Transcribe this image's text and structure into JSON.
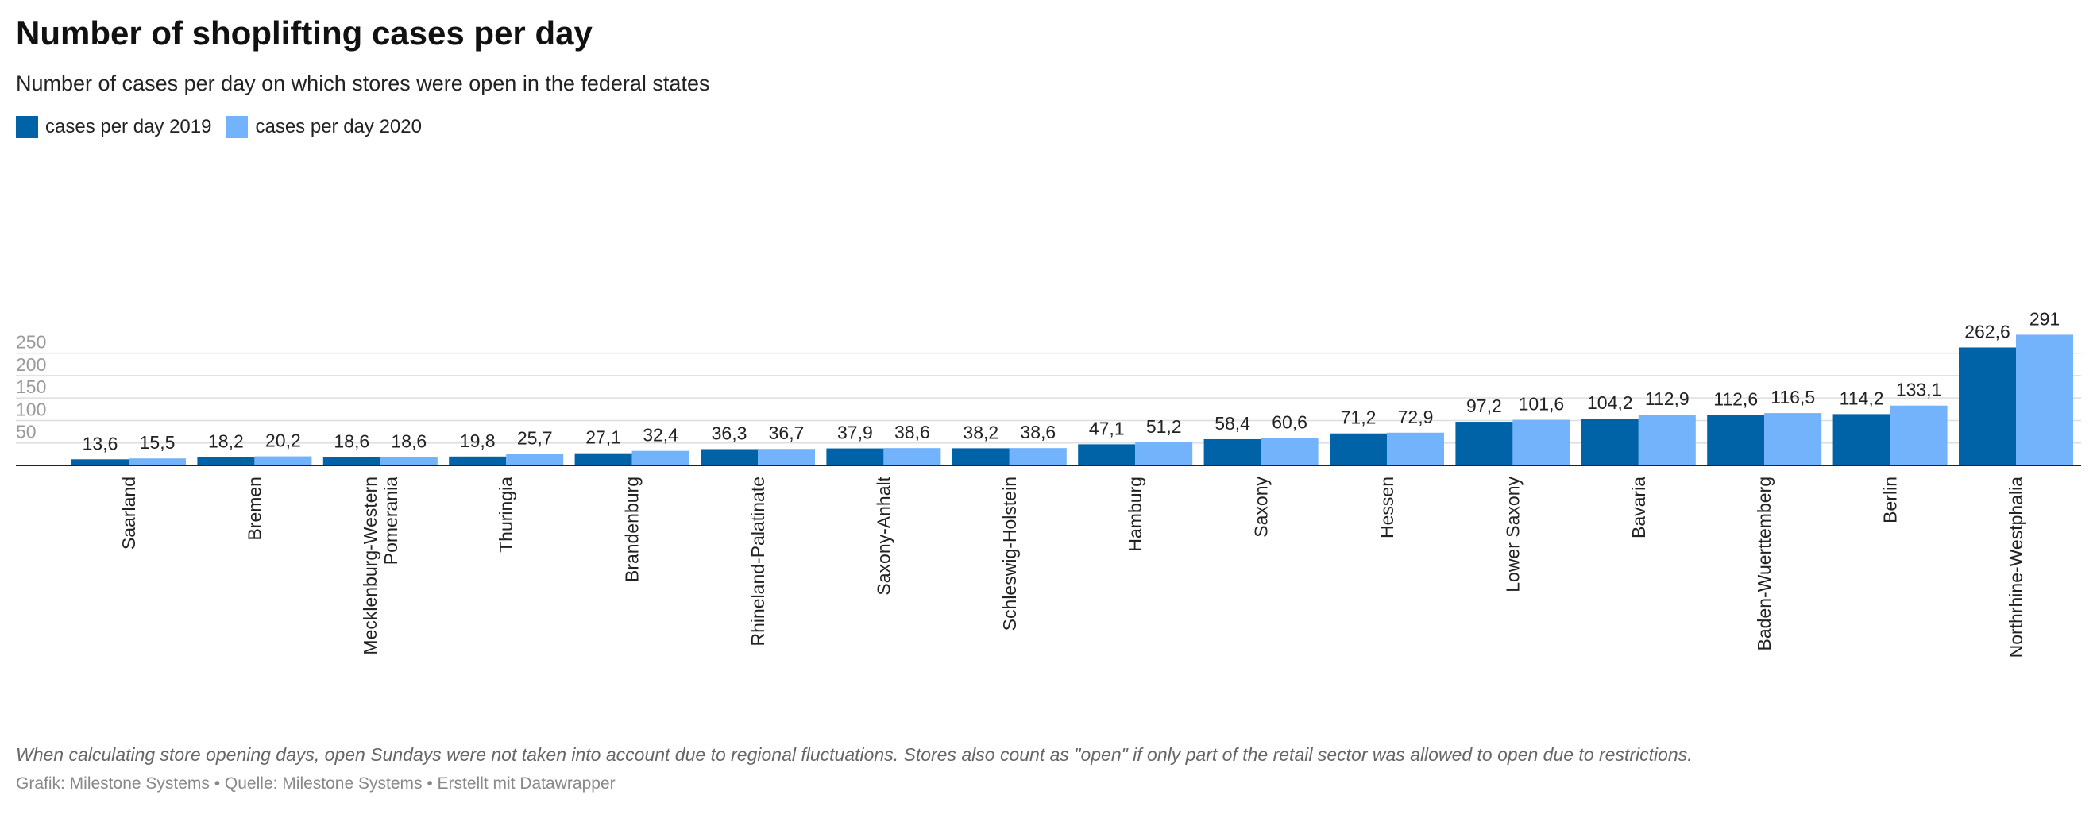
{
  "title": "Number of shoplifting cases per day",
  "subtitle": "Number of cases per day on which stores were open in the federal states",
  "notes": "When calculating store opening days, open Sundays were not taken into account due to regional fluctuations. Stores also count as \"open\" if only part of the retail sector was allowed to open due to restrictions.",
  "footer": "Grafik: Milestone Systems • Quelle: Milestone Systems • Erstellt mit Datawrapper",
  "chart_data": {
    "type": "bar",
    "title": "Number of shoplifting cases per day",
    "subtitle": "Number of cases per day on which stores were open in the federal states",
    "xlabel": "",
    "ylabel": "",
    "ylim": [
      0,
      300
    ],
    "yticks": [
      50,
      100,
      150,
      200,
      250
    ],
    "grid": true,
    "legend_position": "top-left",
    "categories": [
      "Saarland",
      "Bremen",
      "Mecklenburg-Western Pomerania",
      "Thuringia",
      "Brandenburg",
      "Rhineland-Palatinate",
      "Saxony-Anhalt",
      "Schleswig-Holstein",
      "Hamburg",
      "Saxony",
      "Hessen",
      "Lower Saxony",
      "Bavaria",
      "Baden-Wuerttemberg",
      "Berlin",
      "Northrhine-Westphalia"
    ],
    "category_lines": [
      [
        "Saarland"
      ],
      [
        "Bremen"
      ],
      [
        "Mecklenburg-Western",
        "Pomerania"
      ],
      [
        "Thuringia"
      ],
      [
        "Brandenburg"
      ],
      [
        "Rhineland-Palatinate"
      ],
      [
        "Saxony-Anhalt"
      ],
      [
        "Schleswig-Holstein"
      ],
      [
        "Hamburg"
      ],
      [
        "Saxony"
      ],
      [
        "Hessen"
      ],
      [
        "Lower Saxony"
      ],
      [
        "Bavaria"
      ],
      [
        "Baden-Wuerttemberg"
      ],
      [
        "Berlin"
      ],
      [
        "Northrhine-Westphalia"
      ]
    ],
    "series": [
      {
        "name": "cases per day 2019",
        "color": "#0063a8",
        "values": [
          13.6,
          18.2,
          18.6,
          19.8,
          27.1,
          36.3,
          37.9,
          38.2,
          47.1,
          58.4,
          71.2,
          97.2,
          104.2,
          112.6,
          114.2,
          262.6
        ],
        "labels": [
          "13,6",
          "18,2",
          "18,6",
          "19,8",
          "27,1",
          "36,3",
          "37,9",
          "38,2",
          "47,1",
          "58,4",
          "71,2",
          "97,2",
          "104,2",
          "112,6",
          "114,2",
          "262,6"
        ]
      },
      {
        "name": "cases per day 2020",
        "color": "#72b3fc",
        "values": [
          15.5,
          20.2,
          18.6,
          25.7,
          32.4,
          36.7,
          38.6,
          38.6,
          51.2,
          60.6,
          72.9,
          101.6,
          112.9,
          116.5,
          133.1,
          291
        ],
        "labels": [
          "15,5",
          "20,2",
          "18,6",
          "25,7",
          "32,4",
          "36,7",
          "38,6",
          "38,6",
          "51,2",
          "60,6",
          "72,9",
          "101,6",
          "112,9",
          "116,5",
          "133,1",
          "291"
        ]
      }
    ]
  }
}
